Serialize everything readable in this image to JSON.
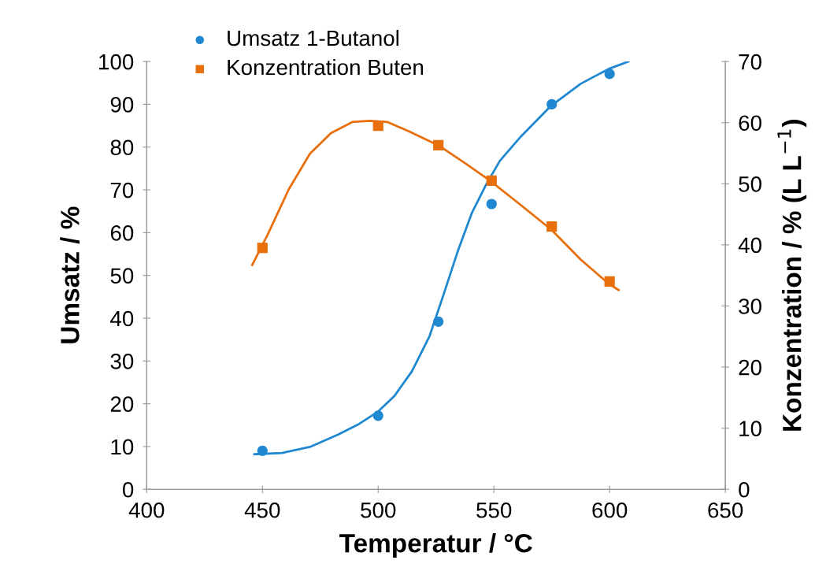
{
  "chart_data": {
    "type": "scatter",
    "xlabel": "Temperatur / °C",
    "ylabel": "Umsatz / %",
    "y2label": "Konzentration / % (L L$^{−1}$)",
    "xlim": [
      400,
      650
    ],
    "xticks": [
      400,
      450,
      500,
      550,
      600,
      650
    ],
    "ylim": [
      0,
      100
    ],
    "yticks": [
      0,
      10,
      20,
      30,
      40,
      50,
      60,
      70,
      80,
      90,
      100
    ],
    "y2lim": [
      0,
      70
    ],
    "y2ticks": [
      0,
      10,
      20,
      30,
      40,
      50,
      60,
      70
    ],
    "grid": false,
    "legend": "top left",
    "series": [
      {
        "name": "Umsatz 1-Butanol",
        "marker": "circle",
        "color": "#1f88d0",
        "x": [
          450,
          500,
          526,
          549,
          575,
          600
        ],
        "values": [
          9.0,
          17.2,
          39.2,
          66.7,
          90,
          97.1
        ]
      },
      {
        "name": "Konzentration Buten",
        "marker": "square",
        "axis": "y2",
        "color": "#e8700c",
        "x": [
          450,
          500,
          526,
          549,
          575,
          600
        ],
        "values": [
          39.5,
          59.5,
          56.3,
          50.5,
          43.0,
          34.0
        ]
      },
      {
        "type": "line",
        "color": "#1f88d0",
        "line_style": "solid",
        "x": [
          446.5,
          458.4,
          470.5,
          482.7,
          491.8,
          499.8,
          507.0,
          514.6,
          522.2,
          528.3,
          534.3,
          540.4,
          546.5,
          552.6,
          561.7,
          574.8,
          587.5,
          599.7,
          608.1
        ],
        "values": [
          8.2,
          8.5,
          9.9,
          12.8,
          15.3,
          18.1,
          21.8,
          27.6,
          35.8,
          45.6,
          55.5,
          64.5,
          71.1,
          76.8,
          82.5,
          89.7,
          94.8,
          98.3,
          100.0
        ]
      },
      {
        "type": "line",
        "axis": "y2",
        "color": "#e8700c",
        "line_style": "solid",
        "x": [
          445.6,
          452.3,
          461.4,
          470.5,
          479.6,
          488.8,
          496.4,
          504.1,
          513.1,
          526.0,
          537.4,
          548.0,
          558.7,
          574.8,
          587.5,
          599.7,
          603.9
        ],
        "values": [
          36.7,
          41.7,
          49.1,
          54.9,
          58.3,
          60.1,
          60.3,
          60.1,
          58.6,
          56.3,
          53.4,
          50.6,
          47.4,
          42.5,
          37.6,
          33.6,
          32.6
        ]
      }
    ]
  }
}
